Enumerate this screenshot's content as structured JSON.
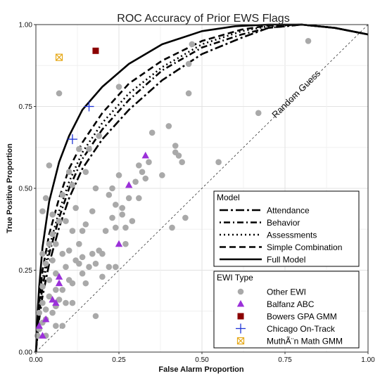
{
  "chart_data": {
    "type": "scatter",
    "title": "ROC Accuracy of Prior EWS Flags",
    "xlabel": "False Alarm Proportion",
    "ylabel": "True Positive Proportion",
    "xlim": [
      0,
      1
    ],
    "ylim": [
      0,
      1
    ],
    "xticks": [
      "0.00",
      "0.25",
      "0.50",
      "0.75",
      "1.00"
    ],
    "yticks": [
      "0.00",
      "0.25",
      "0.50",
      "0.75",
      "1.00"
    ],
    "grid": true,
    "reference_line_label": "Random Guess",
    "legend_model_title": "Model",
    "legend_ewi_title": "EWI Type",
    "legend_placement": "bottom-right",
    "curves": [
      {
        "name": "Attendance",
        "style": "longdash-dot",
        "points": [
          [
            0,
            0
          ],
          [
            0.01,
            0.1
          ],
          [
            0.02,
            0.17
          ],
          [
            0.04,
            0.27
          ],
          [
            0.07,
            0.38
          ],
          [
            0.1,
            0.47
          ],
          [
            0.14,
            0.56
          ],
          [
            0.2,
            0.65
          ],
          [
            0.28,
            0.74
          ],
          [
            0.38,
            0.83
          ],
          [
            0.5,
            0.91
          ],
          [
            0.62,
            0.96
          ],
          [
            0.7,
            0.99
          ],
          [
            0.8,
            1.0
          ],
          [
            0.9,
            0.99
          ],
          [
            1.0,
            0.97
          ]
        ]
      },
      {
        "name": "Behavior",
        "style": "dotdash",
        "points": [
          [
            0,
            0
          ],
          [
            0.01,
            0.12
          ],
          [
            0.02,
            0.2
          ],
          [
            0.04,
            0.3
          ],
          [
            0.07,
            0.41
          ],
          [
            0.1,
            0.5
          ],
          [
            0.14,
            0.59
          ],
          [
            0.2,
            0.68
          ],
          [
            0.28,
            0.77
          ],
          [
            0.38,
            0.86
          ],
          [
            0.5,
            0.93
          ],
          [
            0.62,
            0.97
          ],
          [
            0.7,
            0.99
          ],
          [
            0.8,
            1.0
          ],
          [
            0.9,
            0.99
          ],
          [
            1.0,
            0.97
          ]
        ]
      },
      {
        "name": "Assessments",
        "style": "dotted",
        "points": [
          [
            0,
            0
          ],
          [
            0.01,
            0.13
          ],
          [
            0.02,
            0.22
          ],
          [
            0.04,
            0.32
          ],
          [
            0.07,
            0.43
          ],
          [
            0.1,
            0.52
          ],
          [
            0.14,
            0.61
          ],
          [
            0.2,
            0.7
          ],
          [
            0.28,
            0.79
          ],
          [
            0.38,
            0.87
          ],
          [
            0.5,
            0.94
          ],
          [
            0.62,
            0.98
          ],
          [
            0.7,
            0.995
          ],
          [
            0.8,
            1.0
          ],
          [
            0.9,
            0.99
          ],
          [
            1.0,
            0.97
          ]
        ]
      },
      {
        "name": "Simple Combination",
        "style": "dashed",
        "points": [
          [
            0,
            0
          ],
          [
            0.01,
            0.15
          ],
          [
            0.02,
            0.25
          ],
          [
            0.04,
            0.36
          ],
          [
            0.07,
            0.47
          ],
          [
            0.1,
            0.56
          ],
          [
            0.14,
            0.64
          ],
          [
            0.2,
            0.73
          ],
          [
            0.28,
            0.82
          ],
          [
            0.38,
            0.89
          ],
          [
            0.5,
            0.95
          ],
          [
            0.62,
            0.985
          ],
          [
            0.7,
            0.997
          ],
          [
            0.8,
            1.0
          ],
          [
            0.9,
            0.99
          ],
          [
            1.0,
            0.97
          ]
        ]
      },
      {
        "name": "Full Model",
        "style": "solid",
        "points": [
          [
            0,
            0
          ],
          [
            0.005,
            0.12
          ],
          [
            0.01,
            0.2
          ],
          [
            0.02,
            0.32
          ],
          [
            0.04,
            0.46
          ],
          [
            0.07,
            0.58
          ],
          [
            0.1,
            0.66
          ],
          [
            0.14,
            0.74
          ],
          [
            0.2,
            0.81
          ],
          [
            0.28,
            0.88
          ],
          [
            0.38,
            0.94
          ],
          [
            0.5,
            0.98
          ],
          [
            0.6,
            0.995
          ],
          [
            0.7,
            1.0
          ],
          [
            0.8,
            1.0
          ],
          [
            0.9,
            0.99
          ],
          [
            1.0,
            0.97
          ]
        ]
      }
    ],
    "series": [
      {
        "name": "Other EWI",
        "marker": "circle",
        "color": "#a9a9a9",
        "points": [
          [
            0.005,
            0.05
          ],
          [
            0.01,
            0.07
          ],
          [
            0.01,
            0.12
          ],
          [
            0.02,
            0.09
          ],
          [
            0.02,
            0.15
          ],
          [
            0.02,
            0.2
          ],
          [
            0.02,
            0.3
          ],
          [
            0.02,
            0.43
          ],
          [
            0.03,
            0.05
          ],
          [
            0.03,
            0.1
          ],
          [
            0.03,
            0.13
          ],
          [
            0.03,
            0.27
          ],
          [
            0.03,
            0.47
          ],
          [
            0.04,
            0.17
          ],
          [
            0.04,
            0.22
          ],
          [
            0.04,
            0.33
          ],
          [
            0.04,
            0.57
          ],
          [
            0.05,
            0.12
          ],
          [
            0.05,
            0.28
          ],
          [
            0.05,
            0.36
          ],
          [
            0.05,
            0.42
          ],
          [
            0.06,
            0.08
          ],
          [
            0.06,
            0.14
          ],
          [
            0.06,
            0.19
          ],
          [
            0.06,
            0.24
          ],
          [
            0.06,
            0.33
          ],
          [
            0.07,
            0.16
          ],
          [
            0.07,
            0.4
          ],
          [
            0.07,
            0.79
          ],
          [
            0.08,
            0.08
          ],
          [
            0.08,
            0.19
          ],
          [
            0.08,
            0.3
          ],
          [
            0.08,
            0.48
          ],
          [
            0.09,
            0.15
          ],
          [
            0.09,
            0.26
          ],
          [
            0.09,
            0.4
          ],
          [
            0.1,
            0.31
          ],
          [
            0.1,
            0.22
          ],
          [
            0.1,
            0.55
          ],
          [
            0.11,
            0.15
          ],
          [
            0.11,
            0.21
          ],
          [
            0.11,
            0.37
          ],
          [
            0.11,
            0.51
          ],
          [
            0.12,
            0.28
          ],
          [
            0.12,
            0.44
          ],
          [
            0.13,
            0.27
          ],
          [
            0.13,
            0.33
          ],
          [
            0.13,
            0.62
          ],
          [
            0.14,
            0.24
          ],
          [
            0.14,
            0.29
          ],
          [
            0.14,
            0.37
          ],
          [
            0.15,
            0.39
          ],
          [
            0.15,
            0.21
          ],
          [
            0.15,
            0.55
          ],
          [
            0.16,
            0.26
          ],
          [
            0.16,
            0.62
          ],
          [
            0.17,
            0.3
          ],
          [
            0.17,
            0.43
          ],
          [
            0.18,
            0.11
          ],
          [
            0.18,
            0.27
          ],
          [
            0.18,
            0.5
          ],
          [
            0.19,
            0.31
          ],
          [
            0.19,
            0.66
          ],
          [
            0.2,
            0.3
          ],
          [
            0.2,
            0.23
          ],
          [
            0.21,
            0.37
          ],
          [
            0.22,
            0.48
          ],
          [
            0.22,
            0.26
          ],
          [
            0.23,
            0.41
          ],
          [
            0.23,
            0.5
          ],
          [
            0.24,
            0.26
          ],
          [
            0.24,
            0.38
          ],
          [
            0.24,
            0.45
          ],
          [
            0.25,
            0.81
          ],
          [
            0.25,
            0.54
          ],
          [
            0.26,
            0.44
          ],
          [
            0.26,
            0.42
          ],
          [
            0.27,
            0.38
          ],
          [
            0.27,
            0.33
          ],
          [
            0.28,
            0.47
          ],
          [
            0.29,
            0.4
          ],
          [
            0.3,
            0.52
          ],
          [
            0.31,
            0.57
          ],
          [
            0.31,
            0.47
          ],
          [
            0.32,
            0.55
          ],
          [
            0.33,
            0.53
          ],
          [
            0.34,
            0.58
          ],
          [
            0.35,
            0.67
          ],
          [
            0.38,
            0.54
          ],
          [
            0.4,
            0.69
          ],
          [
            0.41,
            0.38
          ],
          [
            0.42,
            0.63
          ],
          [
            0.42,
            0.61
          ],
          [
            0.43,
            0.6
          ],
          [
            0.44,
            0.58
          ],
          [
            0.45,
            0.41
          ],
          [
            0.46,
            0.88
          ],
          [
            0.46,
            0.79
          ],
          [
            0.47,
            0.94
          ],
          [
            0.55,
            0.58
          ],
          [
            0.67,
            0.73
          ],
          [
            0.82,
            0.95
          ]
        ]
      },
      {
        "name": "Balfanz ABC",
        "marker": "triangle",
        "color": "#9b30d9",
        "points": [
          [
            0.01,
            0.08
          ],
          [
            0.02,
            0.05
          ],
          [
            0.03,
            0.1
          ],
          [
            0.05,
            0.16
          ],
          [
            0.06,
            0.15
          ],
          [
            0.07,
            0.21
          ],
          [
            0.07,
            0.23
          ],
          [
            0.25,
            0.33
          ],
          [
            0.28,
            0.51
          ],
          [
            0.33,
            0.6
          ]
        ]
      },
      {
        "name": "Bowers GPA GMM",
        "marker": "square",
        "color": "#8b0000",
        "points": [
          [
            0.18,
            0.92
          ]
        ]
      },
      {
        "name": "Chicago On-Track",
        "marker": "plus",
        "color": "#1f35d6",
        "points": [
          [
            0.11,
            0.65
          ],
          [
            0.16,
            0.75
          ]
        ]
      },
      {
        "name": "MuthÃ¨n Math GMM",
        "marker": "square-x",
        "color": "#e6a817",
        "points": [
          [
            0.07,
            0.9
          ]
        ]
      }
    ]
  }
}
